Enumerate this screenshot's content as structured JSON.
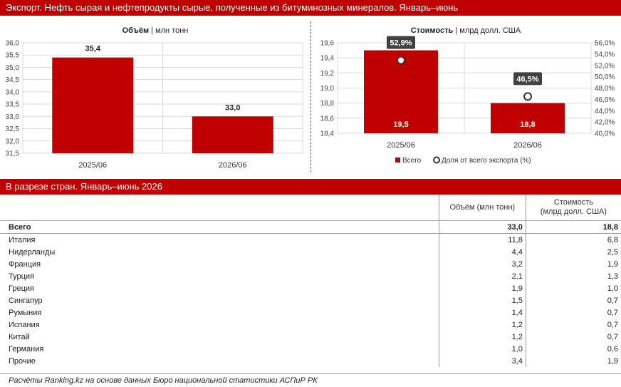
{
  "header_title": "Экспорт. Нефть сырая и нефтепродукты сырые, полученные из битуминозных минералов. Январь–июнь",
  "colors": {
    "brand": "#c00000",
    "grid": "#d9d9d9"
  },
  "chart_data": [
    {
      "type": "bar",
      "title": "Объём",
      "title_unit": "млн тонн",
      "categories": [
        "2025/06",
        "2026/06"
      ],
      "values": [
        35.4,
        33.0
      ],
      "value_labels": [
        "35,4",
        "33,0"
      ],
      "ylim": [
        31.5,
        36.0
      ],
      "yticks": [
        "31,5",
        "32,0",
        "32,5",
        "33,0",
        "33,5",
        "34,0",
        "34,5",
        "35,0",
        "35,5",
        "36,0"
      ],
      "grid": true
    },
    {
      "type": "bar",
      "title": "Стоимость",
      "title_unit": "млрд долл. США",
      "categories": [
        "2025/06",
        "2026/06"
      ],
      "series": [
        {
          "name": "Всего",
          "values": [
            19.5,
            18.8
          ],
          "value_labels": [
            "19,5",
            "18,8"
          ]
        },
        {
          "name": "Доля от всего экспорта (%)",
          "values": [
            52.9,
            46.5
          ],
          "value_labels": [
            "52,9%",
            "46,5%"
          ],
          "axis": "secondary"
        }
      ],
      "ylim": [
        18.4,
        19.6
      ],
      "yticks": [
        "18,4",
        "18,6",
        "18,8",
        "19,0",
        "19,2",
        "19,4",
        "19,6"
      ],
      "y2lim": [
        40,
        56
      ],
      "y2ticks": [
        "40,0%",
        "42,0%",
        "44,0%",
        "46,0%",
        "48,0%",
        "50,0%",
        "52,0%",
        "54,0%",
        "56,0%"
      ],
      "legend": "bottom",
      "grid": true
    }
  ],
  "table": {
    "section_title": "В разрезе стран. Январь–июнь 2026",
    "col_volume": "Объём (млн тонн)",
    "col_value_line1": "Стоимость",
    "col_value_line2": "(млрд долл. США)",
    "total": {
      "name": "Всего",
      "volume": "33,0",
      "value": "18,8"
    },
    "rows": [
      {
        "name": "Италия",
        "volume": "11,8",
        "value": "6,8"
      },
      {
        "name": "Нидерланды",
        "volume": "4,4",
        "value": "2,5"
      },
      {
        "name": "Франция",
        "volume": "3,2",
        "value": "1,9"
      },
      {
        "name": "Турция",
        "volume": "2,1",
        "value": "1,3"
      },
      {
        "name": "Греция",
        "volume": "1,9",
        "value": "1,0"
      },
      {
        "name": "Сингапур",
        "volume": "1,5",
        "value": "0,7"
      },
      {
        "name": "Румыния",
        "volume": "1,4",
        "value": "0,7"
      },
      {
        "name": "Испания",
        "volume": "1,2",
        "value": "0,7"
      },
      {
        "name": "Китай",
        "volume": "1,2",
        "value": "0,7"
      },
      {
        "name": "Германия",
        "volume": "1,0",
        "value": "0,6"
      },
      {
        "name": "Прочие",
        "volume": "3,4",
        "value": "1,9"
      }
    ]
  },
  "footer": "Расчёты Ranking.kz на основе данных Бюро национальной статистики АСПиР РК"
}
